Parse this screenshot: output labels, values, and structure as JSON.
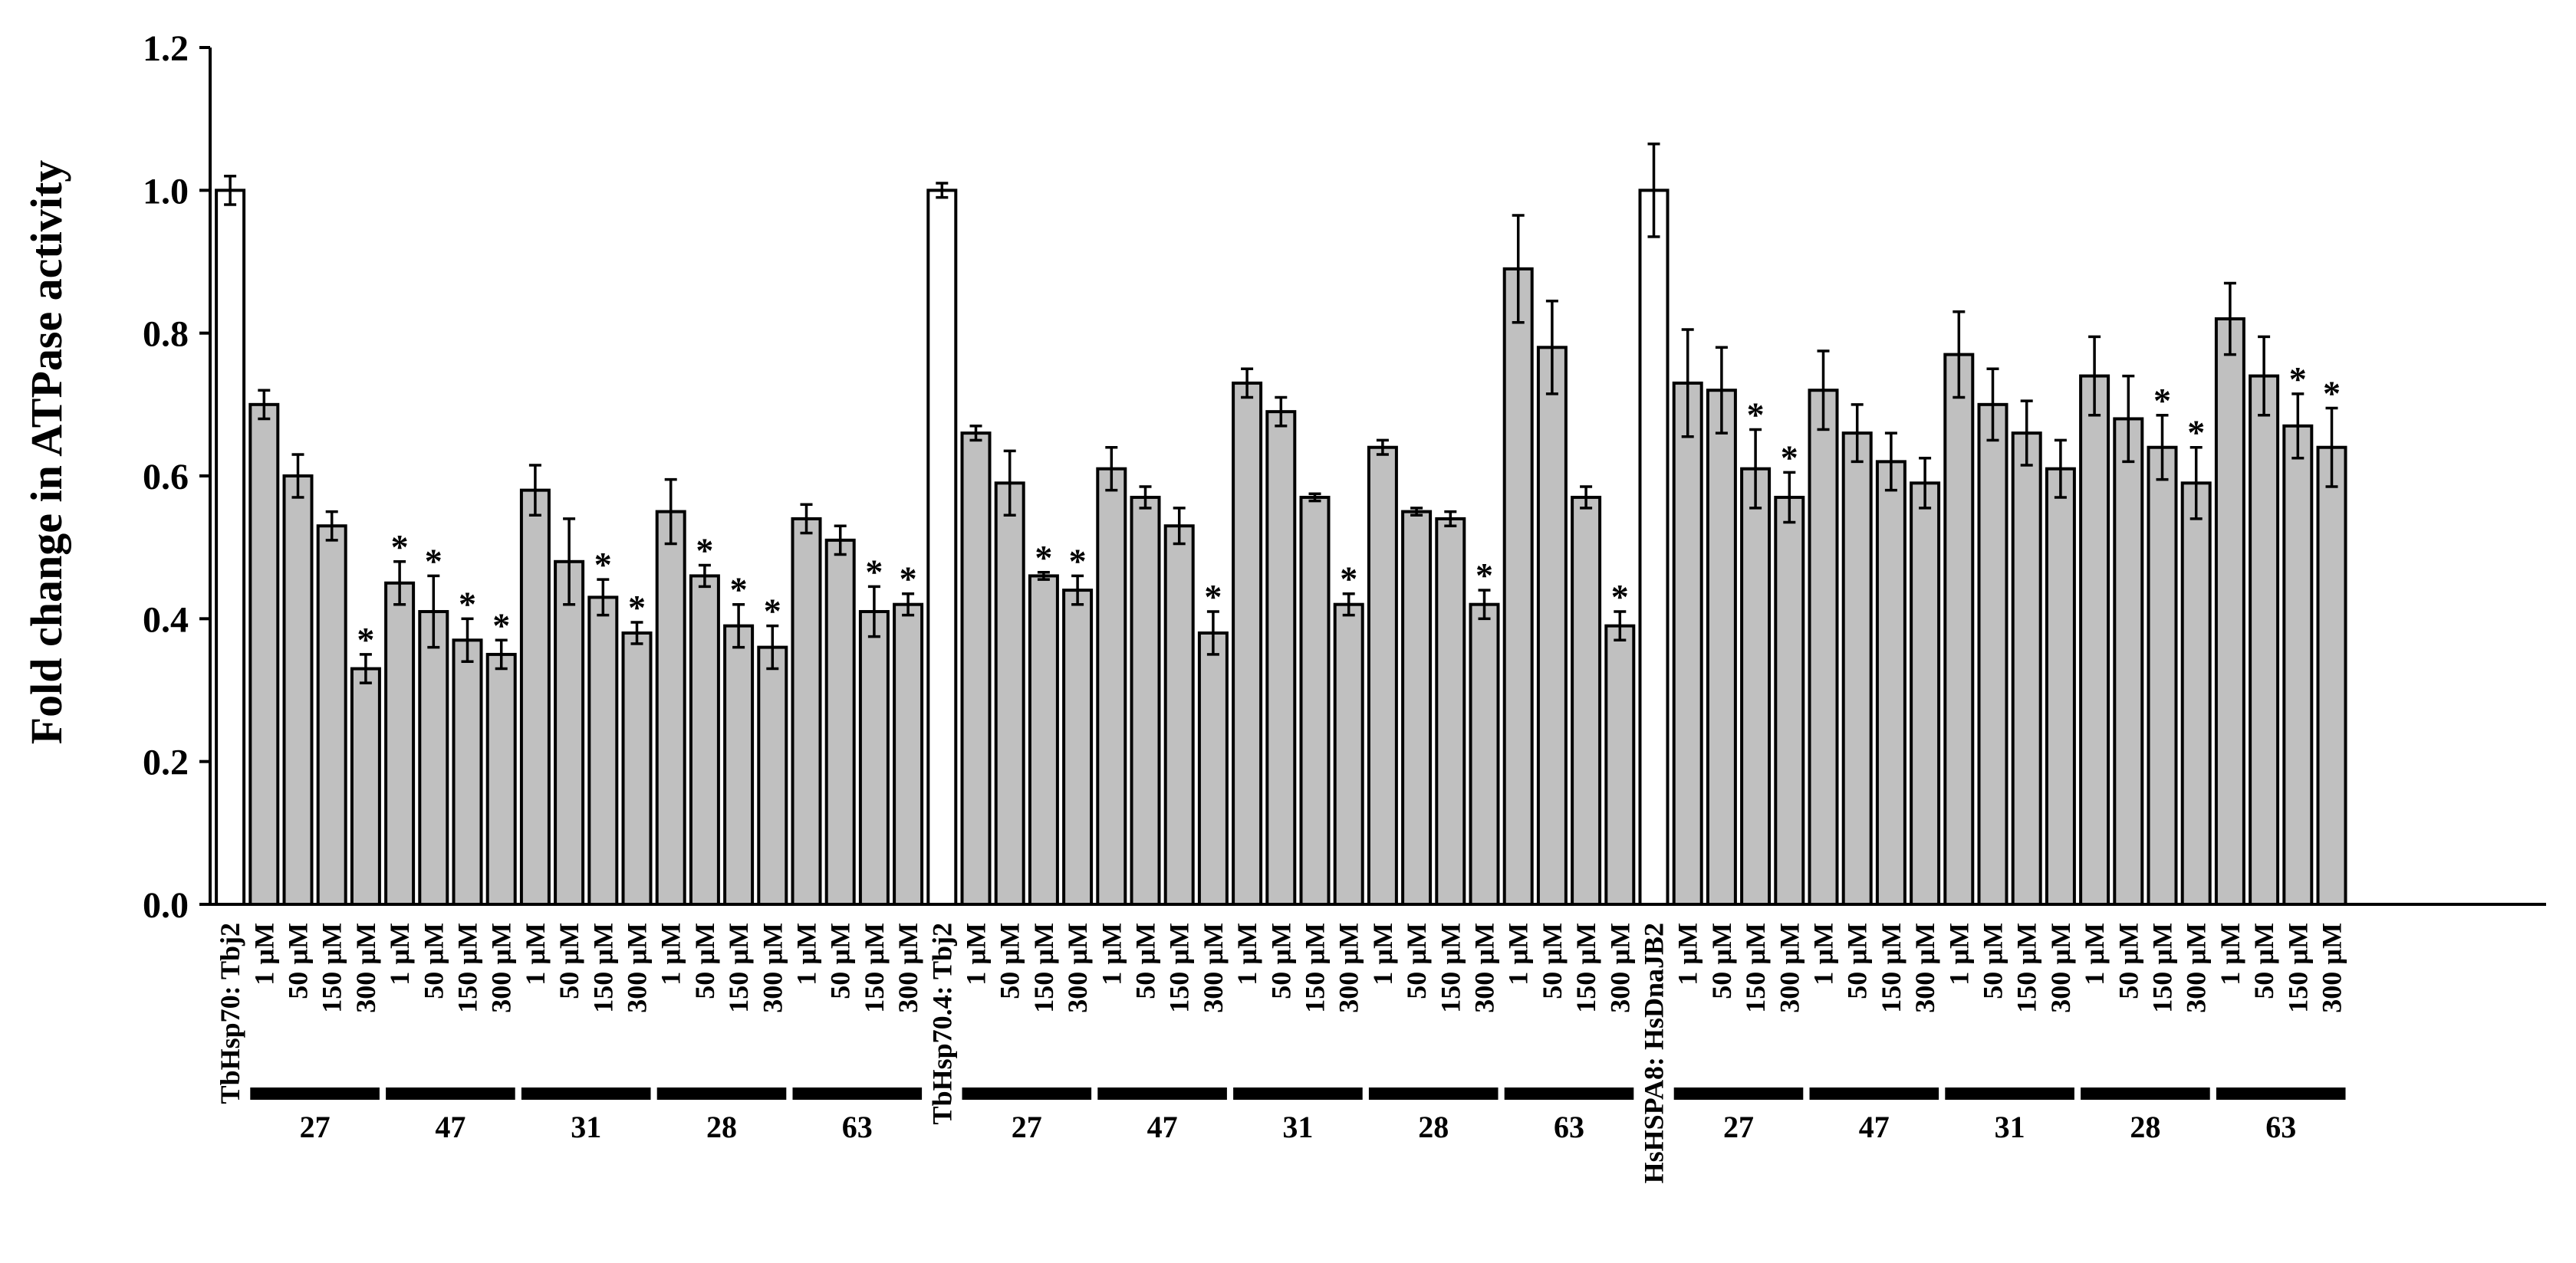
{
  "chart_data": {
    "type": "bar",
    "title": "",
    "ylabel": "Fold change in ATPase activity",
    "xlabel": "",
    "ylim": [
      0,
      1.2
    ],
    "yticks": [
      "0.0",
      "0.2",
      "0.4",
      "0.6",
      "0.8",
      "1.0",
      "1.2"
    ],
    "grid": false,
    "legend": "none",
    "colors": {
      "control": "#ffffff",
      "treated": "#c0c0c0",
      "stroke": "#000000"
    },
    "groups": [
      {
        "control_label": "TbHsp70: Tbj2",
        "control": {
          "value": 1.0,
          "error": 0.02
        },
        "compounds": [
          {
            "name": "27",
            "bars": [
              {
                "label": "1 µM",
                "value": 0.7,
                "error": 0.02,
                "sig": ""
              },
              {
                "label": "50 µM",
                "value": 0.6,
                "error": 0.03,
                "sig": ""
              },
              {
                "label": "150 µM",
                "value": 0.53,
                "error": 0.02,
                "sig": ""
              },
              {
                "label": "300 µM",
                "value": 0.33,
                "error": 0.02,
                "sig": "*"
              }
            ]
          },
          {
            "name": "47",
            "bars": [
              {
                "label": "1 µM",
                "value": 0.45,
                "error": 0.03,
                "sig": "*"
              },
              {
                "label": "50 µM",
                "value": 0.41,
                "error": 0.05,
                "sig": "*"
              },
              {
                "label": "150 µM",
                "value": 0.37,
                "error": 0.03,
                "sig": "*"
              },
              {
                "label": "300 µM",
                "value": 0.35,
                "error": 0.02,
                "sig": "*"
              }
            ]
          },
          {
            "name": "31",
            "bars": [
              {
                "label": "1 µM",
                "value": 0.58,
                "error": 0.035,
                "sig": ""
              },
              {
                "label": "50 µM",
                "value": 0.48,
                "error": 0.06,
                "sig": ""
              },
              {
                "label": "150 µM",
                "value": 0.43,
                "error": 0.025,
                "sig": "*"
              },
              {
                "label": "300 µM",
                "value": 0.38,
                "error": 0.015,
                "sig": "*"
              }
            ]
          },
          {
            "name": "28",
            "bars": [
              {
                "label": "1 µM",
                "value": 0.55,
                "error": 0.045,
                "sig": ""
              },
              {
                "label": "50 µM",
                "value": 0.46,
                "error": 0.015,
                "sig": "*"
              },
              {
                "label": "150 µM",
                "value": 0.39,
                "error": 0.03,
                "sig": "*"
              },
              {
                "label": "300 µM",
                "value": 0.36,
                "error": 0.03,
                "sig": "*"
              }
            ]
          },
          {
            "name": "63",
            "bars": [
              {
                "label": "1 µM",
                "value": 0.54,
                "error": 0.02,
                "sig": ""
              },
              {
                "label": "50 µM",
                "value": 0.51,
                "error": 0.02,
                "sig": ""
              },
              {
                "label": "150 µM",
                "value": 0.41,
                "error": 0.035,
                "sig": "*"
              },
              {
                "label": "300 µM",
                "value": 0.42,
                "error": 0.015,
                "sig": "*"
              }
            ]
          }
        ]
      },
      {
        "control_label": "TbHsp70.4: Tbj2",
        "control": {
          "value": 1.0,
          "error": 0.01
        },
        "compounds": [
          {
            "name": "27",
            "bars": [
              {
                "label": "1 µM",
                "value": 0.66,
                "error": 0.01,
                "sig": ""
              },
              {
                "label": "50 µM",
                "value": 0.59,
                "error": 0.045,
                "sig": ""
              },
              {
                "label": "150 µM",
                "value": 0.46,
                "error": 0.005,
                "sig": "*"
              },
              {
                "label": "300 µM",
                "value": 0.44,
                "error": 0.02,
                "sig": "*"
              }
            ]
          },
          {
            "name": "47",
            "bars": [
              {
                "label": "1 µM",
                "value": 0.61,
                "error": 0.03,
                "sig": ""
              },
              {
                "label": "50 µM",
                "value": 0.57,
                "error": 0.015,
                "sig": ""
              },
              {
                "label": "150 µM",
                "value": 0.53,
                "error": 0.025,
                "sig": ""
              },
              {
                "label": "300 µM",
                "value": 0.38,
                "error": 0.03,
                "sig": "*"
              }
            ]
          },
          {
            "name": "31",
            "bars": [
              {
                "label": "1 µM",
                "value": 0.73,
                "error": 0.02,
                "sig": ""
              },
              {
                "label": "50 µM",
                "value": 0.69,
                "error": 0.02,
                "sig": ""
              },
              {
                "label": "150 µM",
                "value": 0.57,
                "error": 0.005,
                "sig": ""
              },
              {
                "label": "300 µM",
                "value": 0.42,
                "error": 0.015,
                "sig": "*"
              }
            ]
          },
          {
            "name": "28",
            "bars": [
              {
                "label": "1 µM",
                "value": 0.64,
                "error": 0.01,
                "sig": ""
              },
              {
                "label": "50 µM",
                "value": 0.55,
                "error": 0.005,
                "sig": ""
              },
              {
                "label": "150 µM",
                "value": 0.54,
                "error": 0.01,
                "sig": ""
              },
              {
                "label": "300 µM",
                "value": 0.42,
                "error": 0.02,
                "sig": "*"
              }
            ]
          },
          {
            "name": "63",
            "bars": [
              {
                "label": "1 µM",
                "value": 0.89,
                "error": 0.075,
                "sig": ""
              },
              {
                "label": "50 µM",
                "value": 0.78,
                "error": 0.065,
                "sig": ""
              },
              {
                "label": "150 µM",
                "value": 0.57,
                "error": 0.015,
                "sig": ""
              },
              {
                "label": "300 µM",
                "value": 0.39,
                "error": 0.02,
                "sig": "*"
              }
            ]
          }
        ]
      },
      {
        "control_label": "HsHSPA8: HsDnaJB2",
        "control": {
          "value": 1.0,
          "error": 0.065
        },
        "compounds": [
          {
            "name": "27",
            "bars": [
              {
                "label": "1 µM",
                "value": 0.73,
                "error": 0.075,
                "sig": ""
              },
              {
                "label": "50 µM",
                "value": 0.72,
                "error": 0.06,
                "sig": ""
              },
              {
                "label": "150 µM",
                "value": 0.61,
                "error": 0.055,
                "sig": "*"
              },
              {
                "label": "300 µM",
                "value": 0.57,
                "error": 0.035,
                "sig": "*"
              }
            ]
          },
          {
            "name": "47",
            "bars": [
              {
                "label": "1 µM",
                "value": 0.72,
                "error": 0.055,
                "sig": ""
              },
              {
                "label": "50 µM",
                "value": 0.66,
                "error": 0.04,
                "sig": ""
              },
              {
                "label": "150 µM",
                "value": 0.62,
                "error": 0.04,
                "sig": ""
              },
              {
                "label": "300 µM",
                "value": 0.59,
                "error": 0.035,
                "sig": ""
              }
            ]
          },
          {
            "name": "31",
            "bars": [
              {
                "label": "1 µM",
                "value": 0.77,
                "error": 0.06,
                "sig": ""
              },
              {
                "label": "50 µM",
                "value": 0.7,
                "error": 0.05,
                "sig": ""
              },
              {
                "label": "150 µM",
                "value": 0.66,
                "error": 0.045,
                "sig": ""
              },
              {
                "label": "300 µM",
                "value": 0.61,
                "error": 0.04,
                "sig": ""
              }
            ]
          },
          {
            "name": "28",
            "bars": [
              {
                "label": "1 µM",
                "value": 0.74,
                "error": 0.055,
                "sig": ""
              },
              {
                "label": "50 µM",
                "value": 0.68,
                "error": 0.06,
                "sig": ""
              },
              {
                "label": "150 µM",
                "value": 0.64,
                "error": 0.045,
                "sig": "*"
              },
              {
                "label": "300 µM",
                "value": 0.59,
                "error": 0.05,
                "sig": "*"
              }
            ]
          },
          {
            "name": "63",
            "bars": [
              {
                "label": "1 µM",
                "value": 0.82,
                "error": 0.05,
                "sig": ""
              },
              {
                "label": "50 µM",
                "value": 0.74,
                "error": 0.055,
                "sig": ""
              },
              {
                "label": "150 µM",
                "value": 0.67,
                "error": 0.045,
                "sig": "*"
              },
              {
                "label": "300 µM",
                "value": 0.64,
                "error": 0.055,
                "sig": "*"
              }
            ]
          }
        ]
      }
    ]
  }
}
